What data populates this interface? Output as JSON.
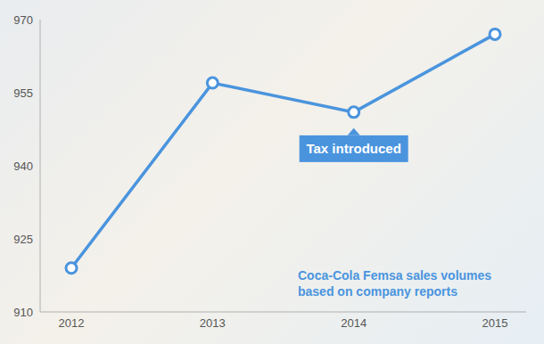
{
  "chart_data": {
    "type": "line",
    "title": "Coca-Cola Femsa sales volumes based on company reports",
    "categories": [
      "2012",
      "2013",
      "2014",
      "2015"
    ],
    "values": [
      919,
      957,
      951,
      967
    ],
    "color": "#4a94de",
    "marker": "circle",
    "ylim": [
      910,
      970
    ],
    "yticks": [
      910,
      925,
      940,
      955,
      970
    ],
    "grid": false,
    "annotations": [
      {
        "text": "Tax introduced",
        "x": "2014"
      }
    ]
  }
}
